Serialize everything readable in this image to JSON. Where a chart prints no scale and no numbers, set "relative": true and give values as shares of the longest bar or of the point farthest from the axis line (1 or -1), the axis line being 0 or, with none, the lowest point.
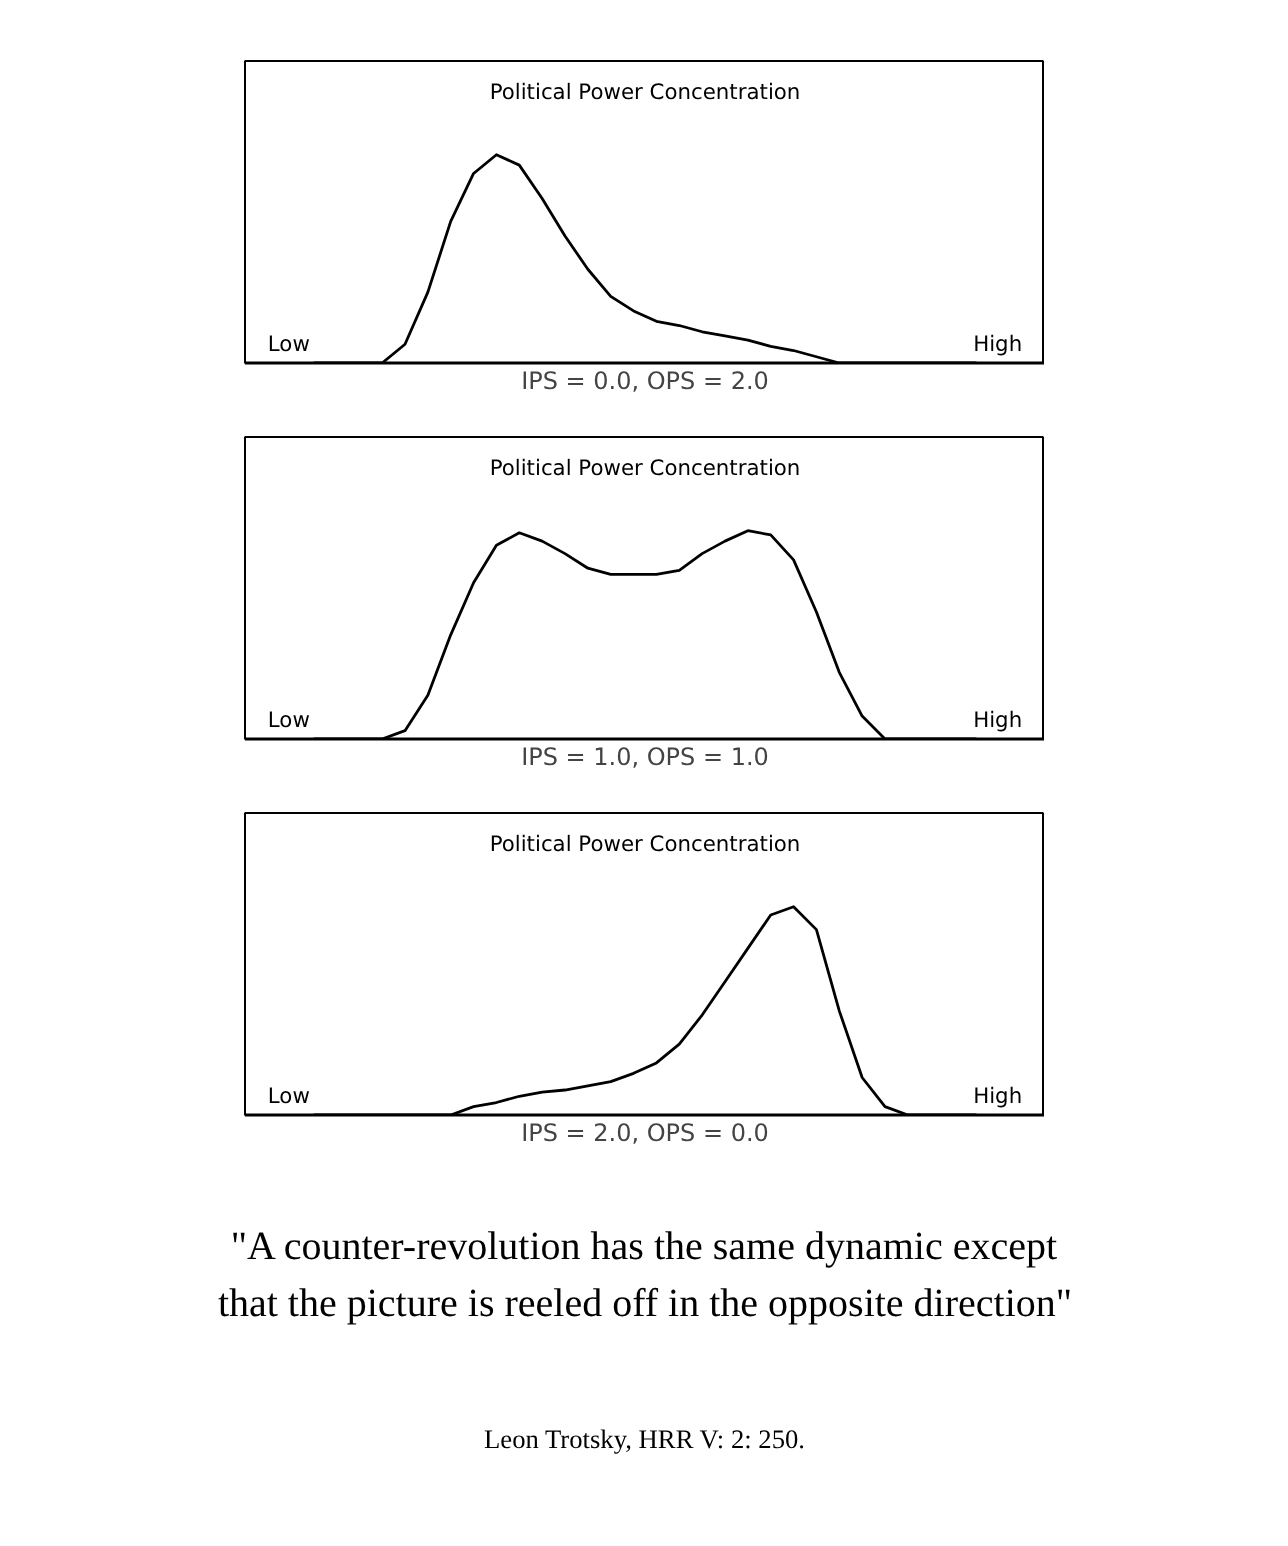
{
  "chart_data": [
    {
      "type": "line",
      "title": "Political Power Concentration",
      "xlabel": "IPS = 0.0, OPS = 2.0",
      "relative": true,
      "categories": [
        null,
        null,
        null,
        null,
        null,
        null,
        null,
        null,
        null,
        null,
        null,
        null,
        null,
        null,
        null,
        null,
        null,
        null,
        null,
        null,
        null,
        null,
        null,
        null,
        null,
        null,
        null,
        null,
        null,
        null
      ],
      "series": [
        {
          "color": "#000000",
          "values": [
            0,
            0,
            0,
            0,
            0.09,
            0.34,
            0.68,
            0.91,
            1,
            0.95,
            0.79,
            0.61,
            0.45,
            0.32,
            0.25,
            0.2,
            0.18,
            0.15,
            0.13,
            0.11,
            0.08,
            0.06,
            0.03,
            0,
            0,
            0,
            0,
            0,
            0,
            0
          ]
        }
      ],
      "annotations": [
        "Low",
        "High"
      ]
    },
    {
      "type": "line",
      "title": "Political Power Concentration",
      "xlabel": "IPS = 1.0, OPS = 1.0",
      "relative": true,
      "categories": [
        null,
        null,
        null,
        null,
        null,
        null,
        null,
        null,
        null,
        null,
        null,
        null,
        null,
        null,
        null,
        null,
        null,
        null,
        null,
        null,
        null,
        null,
        null,
        null,
        null,
        null,
        null,
        null,
        null,
        null
      ],
      "series": [
        {
          "color": "#000000",
          "values": [
            0,
            0,
            0,
            0,
            0.04,
            0.21,
            0.5,
            0.75,
            0.93,
            0.99,
            0.95,
            0.89,
            0.82,
            0.79,
            0.79,
            0.79,
            0.81,
            0.89,
            0.95,
            1,
            0.98,
            0.86,
            0.61,
            0.32,
            0.11,
            0,
            0,
            0,
            0,
            0
          ]
        }
      ],
      "annotations": [
        "Low",
        "High"
      ]
    },
    {
      "type": "line",
      "title": "Political Power Concentration",
      "xlabel": "IPS = 2.0, OPS = 0.0",
      "relative": true,
      "categories": [
        null,
        null,
        null,
        null,
        null,
        null,
        null,
        null,
        null,
        null,
        null,
        null,
        null,
        null,
        null,
        null,
        null,
        null,
        null,
        null,
        null,
        null,
        null,
        null,
        null,
        null,
        null,
        null,
        null,
        null
      ],
      "series": [
        {
          "color": "#000000",
          "values": [
            0,
            0,
            0,
            0,
            0,
            0,
            0,
            0.04,
            0.06,
            0.09,
            0.11,
            0.12,
            0.14,
            0.16,
            0.2,
            0.25,
            0.34,
            0.48,
            0.64,
            0.8,
            0.96,
            1,
            0.89,
            0.5,
            0.18,
            0.04,
            0,
            0,
            0,
            0
          ]
        }
      ],
      "annotations": [
        "Low",
        "High"
      ]
    },
    {
      "type": "other",
      "annotations": [
        "\"A counter-revolution has the same dynamic except",
        "that the picture is reeled off in the opposite direction\"",
        "Leon Trotsky, HRR V: 2: 250."
      ]
    }
  ]
}
